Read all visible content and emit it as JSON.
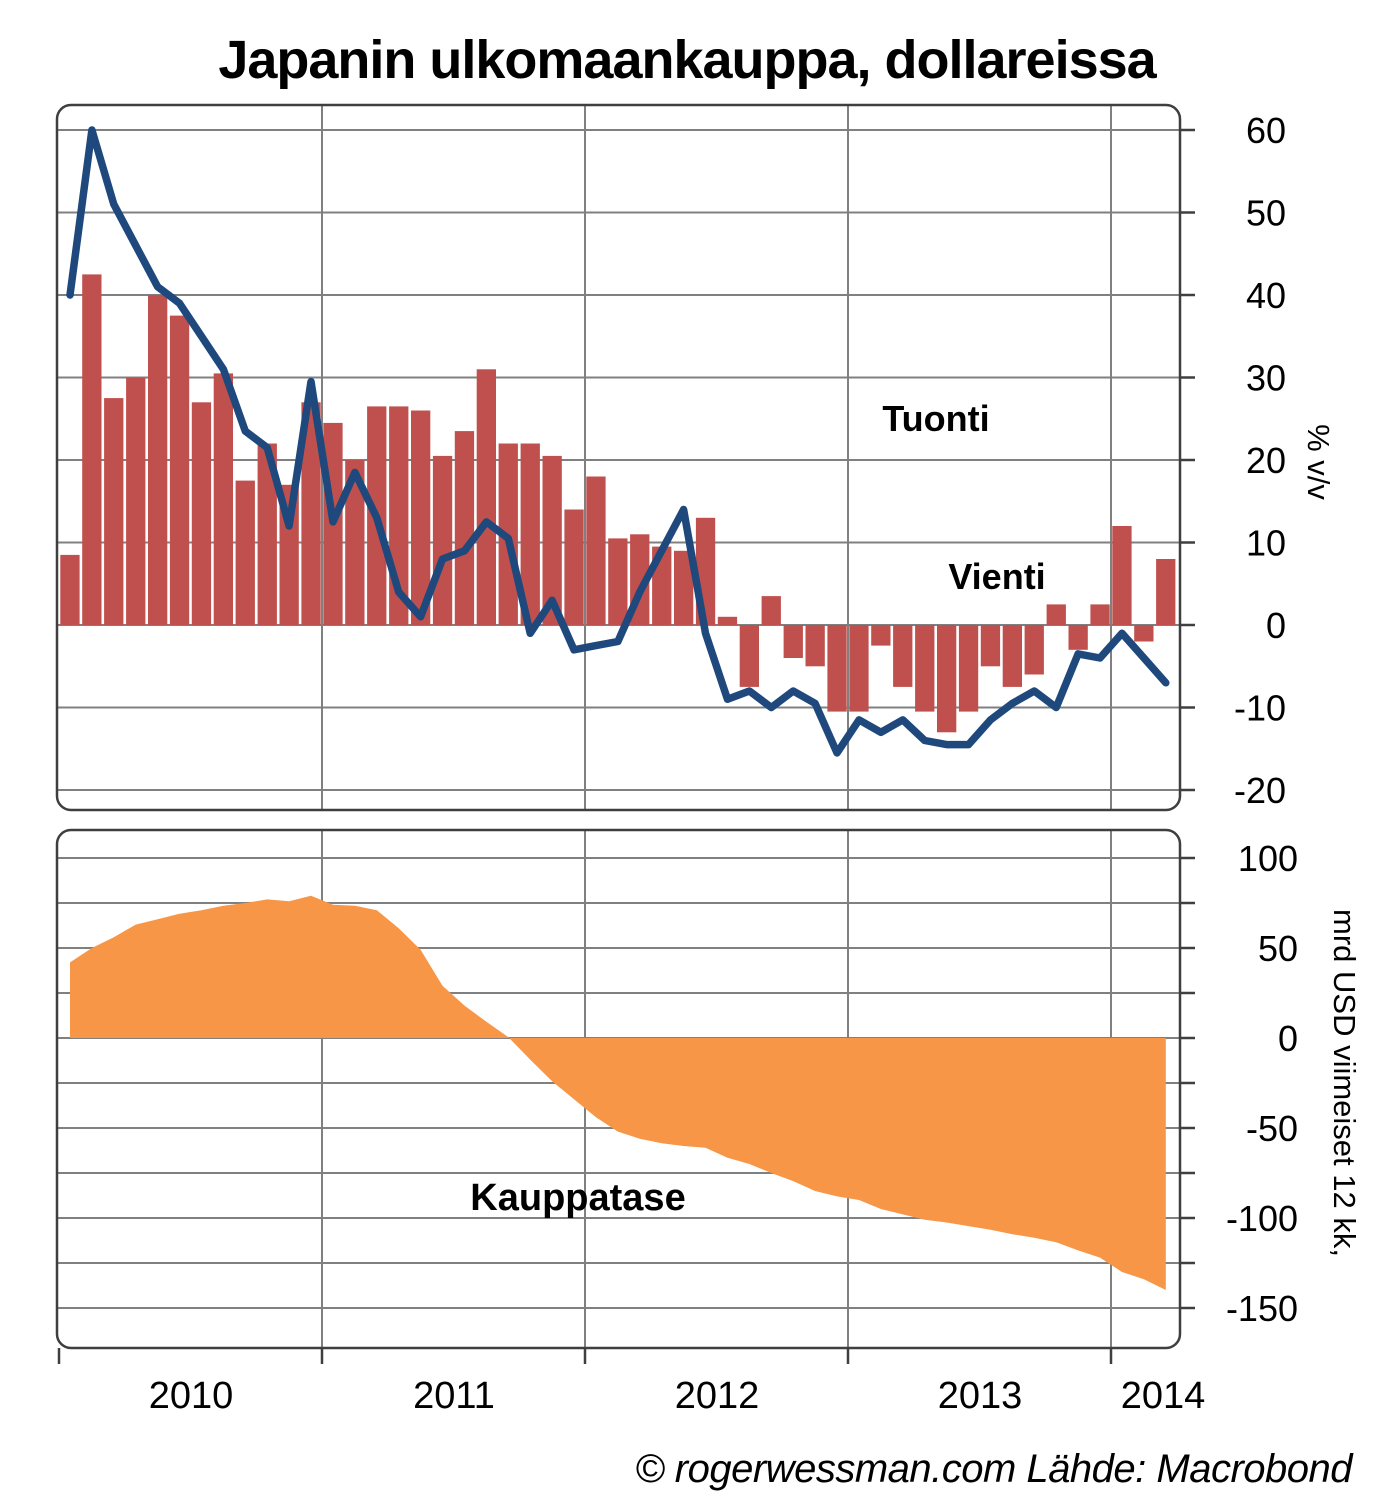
{
  "title": "Japanin ulkomaankauppa, dollareissa",
  "footer": "© rogerwessman.com Lähde: Macrobond",
  "colors": {
    "tuonti_bar": "#c0504d",
    "vienti_line": "#1f497d",
    "kauppatase_area": "#f79646",
    "grid": "#808080",
    "border": "#3f3f3f",
    "text": "#000000",
    "background": "#ffffff"
  },
  "x_axis": {
    "year_labels": [
      "2010",
      "2011",
      "2012",
      "2013",
      "2014"
    ]
  },
  "chart_data": [
    {
      "type": "bar+line",
      "panel": "top",
      "title": "Japanin ulkomaankauppa, dollareissa",
      "ylabel": "% v/v",
      "ylim": [
        -22,
        63
      ],
      "yticks": [
        60,
        50,
        40,
        30,
        20,
        10,
        0,
        -10,
        -20
      ],
      "ytick_labels": [
        "60",
        "50",
        "40",
        "30",
        "20",
        "10",
        "0",
        "-10",
        "-20"
      ],
      "grid": true,
      "legend": "in-plot colored text labels",
      "x": [
        "2010-01",
        "2010-02",
        "2010-03",
        "2010-04",
        "2010-05",
        "2010-06",
        "2010-07",
        "2010-08",
        "2010-09",
        "2010-10",
        "2010-11",
        "2010-12",
        "2011-01",
        "2011-02",
        "2011-03",
        "2011-04",
        "2011-05",
        "2011-06",
        "2011-07",
        "2011-08",
        "2011-09",
        "2011-10",
        "2011-11",
        "2011-12",
        "2012-01",
        "2012-02",
        "2012-03",
        "2012-04",
        "2012-05",
        "2012-06",
        "2012-07",
        "2012-08",
        "2012-09",
        "2012-10",
        "2012-11",
        "2012-12",
        "2013-01",
        "2013-02",
        "2013-03",
        "2013-04",
        "2013-05",
        "2013-06",
        "2013-07",
        "2013-08",
        "2013-09",
        "2013-10",
        "2013-11",
        "2013-12",
        "2014-01",
        "2014-02",
        "2014-03"
      ],
      "series": [
        {
          "name": "Tuonti",
          "type": "bar",
          "color": "#c0504d",
          "values": [
            8.5,
            42.5,
            27.5,
            30,
            40,
            37.5,
            27,
            30.5,
            17.5,
            22,
            17,
            27,
            24.5,
            20,
            26.5,
            26.5,
            26,
            20.5,
            23.5,
            31,
            22,
            22,
            20.5,
            14,
            18,
            10.5,
            11,
            9.5,
            9,
            13,
            1,
            -7.5,
            3.5,
            -4,
            -5,
            -10.5,
            -10.5,
            -2.5,
            -7.5,
            -10.5,
            -13,
            -10.5,
            -5,
            -7.5,
            -6,
            2.5,
            -3,
            2.5,
            12,
            -2,
            8
          ]
        },
        {
          "name": "Vienti",
          "type": "line",
          "color": "#1f497d",
          "values": [
            40,
            60,
            51,
            46,
            41,
            39,
            35,
            31,
            23.5,
            21.5,
            12,
            29.5,
            12.5,
            18.5,
            13,
            4,
            1,
            8,
            9,
            12.5,
            10.5,
            -1,
            3,
            -3,
            -2.5,
            -2,
            4,
            9,
            14,
            -1,
            -9,
            -8,
            -10,
            -8,
            -9.5,
            -15.5,
            -11.5,
            -13,
            -11.5,
            -14,
            -14.5,
            -14.5,
            -11.5,
            -9.5,
            -8,
            -10,
            -3.5,
            -4,
            -1,
            -4,
            -7
          ]
        }
      ]
    },
    {
      "type": "area",
      "panel": "bottom",
      "ylabel": "mrd USD viimeiset 12 kk,",
      "ylim": [
        -172,
        115
      ],
      "yticks": [
        100,
        50,
        0,
        -50,
        -100,
        -150
      ],
      "ytick_labels": [
        "100",
        "50",
        "0",
        "-50",
        "-100",
        "-150"
      ],
      "gridline_values": [
        100,
        75,
        50,
        25,
        0,
        -25,
        -50,
        -75,
        -100,
        -125,
        -150
      ],
      "grid": true,
      "x": [
        "2010-01",
        "2010-02",
        "2010-03",
        "2010-04",
        "2010-05",
        "2010-06",
        "2010-07",
        "2010-08",
        "2010-09",
        "2010-10",
        "2010-11",
        "2010-12",
        "2011-01",
        "2011-02",
        "2011-03",
        "2011-04",
        "2011-05",
        "2011-06",
        "2011-07",
        "2011-08",
        "2011-09",
        "2011-10",
        "2011-11",
        "2011-12",
        "2012-01",
        "2012-02",
        "2012-03",
        "2012-04",
        "2012-05",
        "2012-06",
        "2012-07",
        "2012-08",
        "2012-09",
        "2012-10",
        "2012-11",
        "2012-12",
        "2013-01",
        "2013-02",
        "2013-03",
        "2013-04",
        "2013-05",
        "2013-06",
        "2013-07",
        "2013-08",
        "2013-09",
        "2013-10",
        "2013-11",
        "2013-12",
        "2014-01",
        "2014-02",
        "2014-03"
      ],
      "series": [
        {
          "name": "Kauppatase",
          "type": "area",
          "color": "#f79646",
          "values": [
            42,
            50,
            56,
            63,
            66,
            69,
            71,
            73.5,
            75,
            77,
            76,
            79,
            74,
            73.5,
            71,
            61,
            49,
            29,
            18,
            9,
            0.5,
            -12,
            -24,
            -34,
            -44,
            -52,
            -56,
            -58.5,
            -60,
            -61,
            -66.5,
            -70,
            -75,
            -79.5,
            -85,
            -88,
            -90,
            -95,
            -98,
            -101,
            -102.5,
            -104.5,
            -106.5,
            -109,
            -111,
            -113.5,
            -118,
            -122,
            -130,
            -134,
            -140
          ]
        }
      ]
    }
  ]
}
